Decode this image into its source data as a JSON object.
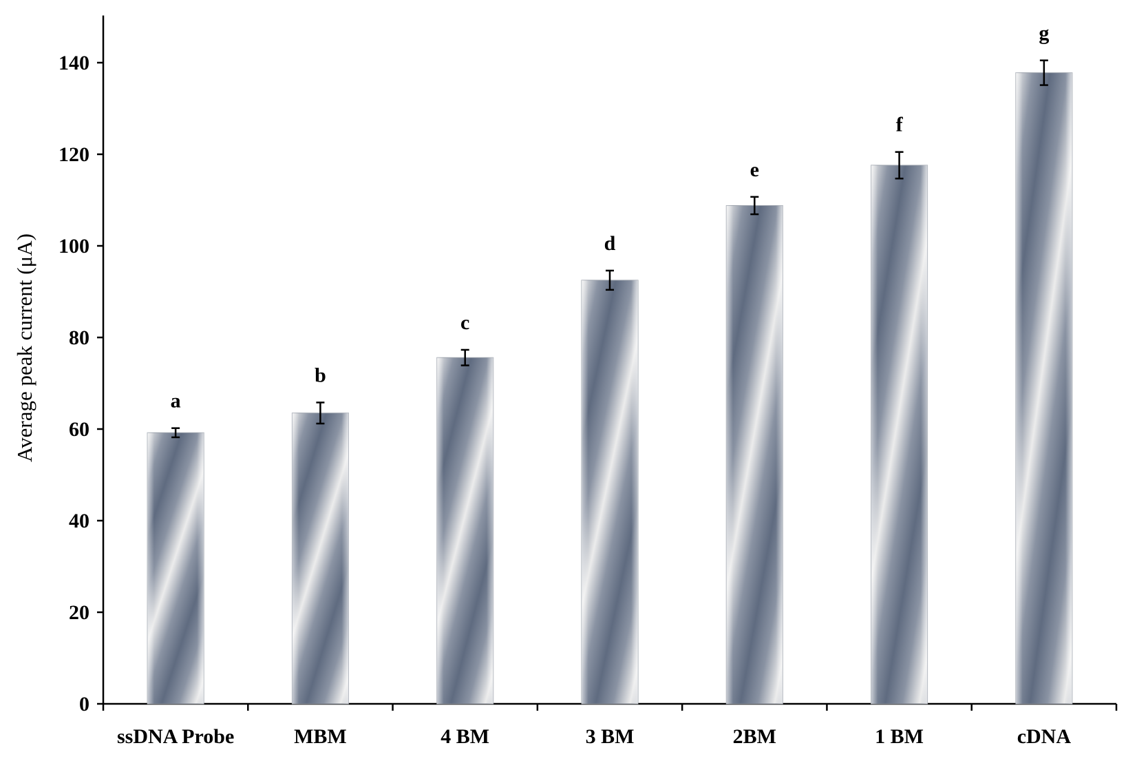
{
  "chart_data": {
    "type": "bar",
    "title": "",
    "xlabel": "",
    "ylabel": "Average peak current (μA)",
    "ylim": [
      0,
      150
    ],
    "yticks": [
      0,
      20,
      40,
      60,
      80,
      100,
      120,
      140
    ],
    "categories": [
      "ssDNA Probe",
      "MBM",
      "4 BM",
      "3 BM",
      "2BM",
      "1 BM",
      "cDNA"
    ],
    "values": [
      59.2,
      63.5,
      75.6,
      92.5,
      108.8,
      117.6,
      137.8
    ],
    "errors": [
      1.0,
      2.3,
      1.7,
      2.1,
      1.9,
      2.9,
      2.7
    ],
    "significance_letters": [
      "a",
      "b",
      "c",
      "d",
      "e",
      "f",
      "g"
    ],
    "grid": false,
    "legend": "none",
    "colors": {
      "bar_dark": "#5f6b80",
      "bar_light": "#ececec",
      "axis": "#000000"
    }
  }
}
